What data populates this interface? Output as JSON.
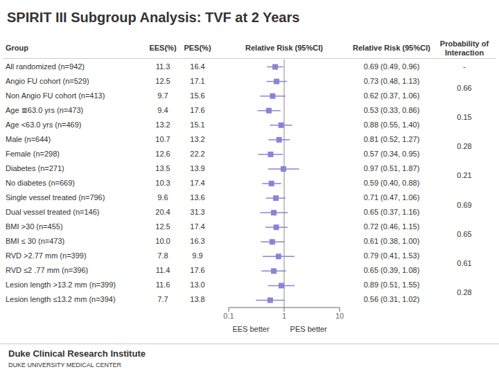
{
  "chart_data": {
    "type": "forest",
    "title": "SPIRIT III Subgroup Analysis: TVF at 2 Years",
    "categories": [
      "All randomized (n=942)",
      "Angio FU cohort (n=529)",
      "Non Angio FU cohort (n=413)",
      "Age ≣63.0 yrs (n=473)",
      "Age <63.0 yrs (n=469)",
      "Male (n=644)",
      "Female (n=298)",
      "Diabetes (n=271)",
      "No diabetes (n=669)",
      "Single vessel treated (n=796)",
      "Dual vessel treated (n=146)",
      "BMI >30 (n=455)",
      "BMI ≤ 30 (n=473)",
      "RVD >2.77 mm (n=399)",
      "RVD ≤2 .77 mm (n=396)",
      "Lesion length >13.2 mm (n=399)",
      "Lesion length ≤13.2 mm (n=394)"
    ],
    "values": [
      0.69,
      0.73,
      0.62,
      0.53,
      0.88,
      0.81,
      0.57,
      0.97,
      0.59,
      0.71,
      0.65,
      0.72,
      0.61,
      0.79,
      0.65,
      0.89,
      0.56
    ],
    "ci_low": [
      0.49,
      0.48,
      0.37,
      0.33,
      0.55,
      0.52,
      0.34,
      0.51,
      0.4,
      0.47,
      0.37,
      0.46,
      0.38,
      0.41,
      0.39,
      0.51,
      0.31
    ],
    "ci_high": [
      0.96,
      1.13,
      1.06,
      0.86,
      1.4,
      1.27,
      0.95,
      1.87,
      0.88,
      1.06,
      1.16,
      1.15,
      1.0,
      1.53,
      1.08,
      1.55,
      1.02
    ],
    "ees_pct": [
      "11.3",
      "12.5",
      "9.7",
      "9.4",
      "13.2",
      "10.7",
      "12.6",
      "13.5",
      "10.3",
      "9.6",
      "20.4",
      "12.5",
      "10.0",
      "7.8",
      "11.4",
      "11.6",
      "7.7"
    ],
    "pes_pct": [
      "16.4",
      "17.1",
      "15.6",
      "17.6",
      "15.1",
      "13.2",
      "22.2",
      "13.9",
      "17.4",
      "13.6",
      "31.3",
      "17.4",
      "16.3",
      "9.9",
      "17.6",
      "13.0",
      "13.8"
    ],
    "rr_text": [
      "0.69 (0.49, 0.96)",
      "0.73 (0.48, 1.13)",
      "0.62 (0.37, 1.06)",
      "0.53 (0.33, 0.86)",
      "0.88 (0.55, 1.40)",
      "0.81 (0.52, 1.27)",
      "0.57 (0.34, 0.95)",
      "0.97 (0.51, 1.87)",
      "0.59 (0.40, 0.88)",
      "0.71 (0.47, 1.06)",
      "0.65 (0.37, 1.16)",
      "0.72 (0.46, 1.15)",
      "0.61 (0.38, 1.00)",
      "0.79 (0.41, 1.53)",
      "0.65 (0.39, 1.08)",
      "0.89 (0.51, 1.55)",
      "0.56 (0.31, 1.02)"
    ],
    "p_interaction": [
      {
        "label": "-",
        "rows": [
          0,
          0
        ]
      },
      {
        "label": "0.66",
        "rows": [
          1,
          2
        ]
      },
      {
        "label": "0.15",
        "rows": [
          3,
          4
        ]
      },
      {
        "label": "0.28",
        "rows": [
          5,
          6
        ]
      },
      {
        "label": "0.21",
        "rows": [
          7,
          8
        ]
      },
      {
        "label": "0.69",
        "rows": [
          9,
          10
        ]
      },
      {
        "label": "0.65",
        "rows": [
          11,
          12
        ]
      },
      {
        "label": "0.61",
        "rows": [
          13,
          14
        ]
      },
      {
        "label": "0.28",
        "rows": [
          15,
          16
        ]
      }
    ],
    "columns": {
      "group": "Group",
      "ees": "EES(%)",
      "pes": "PES(%)",
      "forest": "Relative Risk (95%CI)",
      "rr_text": "Relative Risk (95%CI)",
      "p_interaction": "Probability of\nInteraction"
    },
    "annotations": [
      "EES better",
      "PES better"
    ],
    "footer": [
      "Duke Clinical Research Institute",
      "DUKE UNIVERSITY MEDICAL CENTER"
    ],
    "xlim": [
      0.1,
      10
    ],
    "xticks": [
      0.1,
      1,
      10
    ],
    "log": "x",
    "reference_line": 1,
    "color": "#8884d8",
    "grid": false,
    "tick_labels": "x"
  }
}
